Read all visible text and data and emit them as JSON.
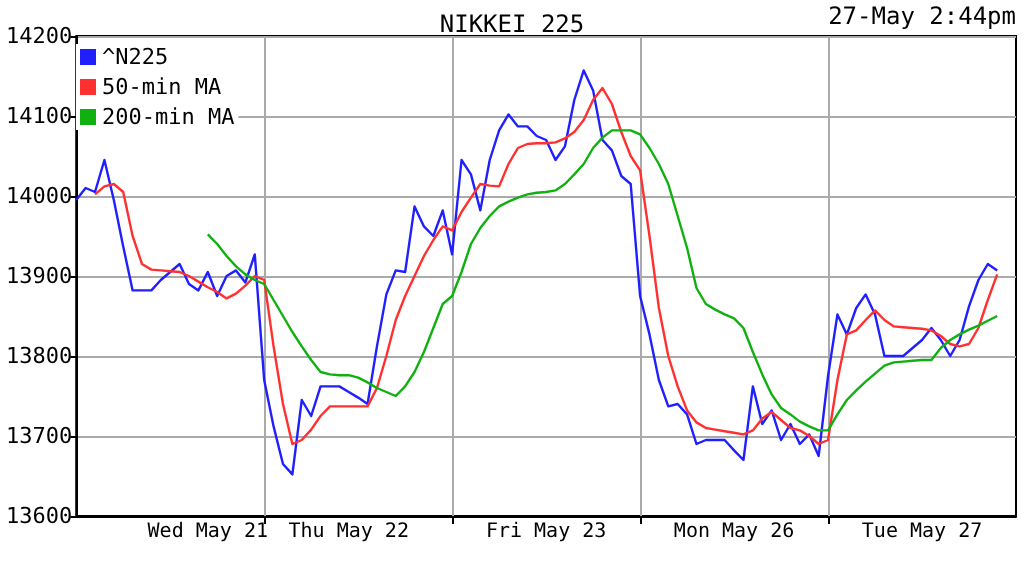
{
  "chart_data": {
    "type": "line",
    "title": "NIKKEI 225",
    "annotations": [
      "27-May 2:44pm"
    ],
    "categories": [
      null,
      null,
      null,
      null,
      null,
      null,
      null,
      null,
      null,
      null,
      null,
      null,
      null,
      null,
      "Wed May 21",
      null,
      null,
      null,
      null,
      null,
      null,
      null,
      null,
      null,
      null,
      null,
      null,
      null,
      null,
      "Thu May 22",
      null,
      null,
      null,
      null,
      null,
      null,
      null,
      null,
      null,
      null,
      null,
      null,
      null,
      null,
      null,
      null,
      null,
      null,
      null,
      null,
      "Fri May 23",
      null,
      null,
      null,
      null,
      null,
      null,
      null,
      null,
      null,
      null,
      null,
      null,
      null,
      null,
      null,
      null,
      null,
      null,
      null,
      "Mon May 26",
      null,
      null,
      null,
      null,
      null,
      null,
      null,
      null,
      null,
      null,
      null,
      null,
      null,
      null,
      null,
      null,
      null,
      null,
      null,
      "Tue May 27",
      null,
      null,
      null,
      null,
      null,
      null,
      null,
      null,
      null,
      null
    ],
    "ylim": [
      13600,
      14200
    ],
    "yticks": [
      13600,
      13700,
      13800,
      13900,
      14000,
      14100,
      14200
    ],
    "grid": true,
    "legend": "top left",
    "marker": "none",
    "line_style": "solid",
    "series": [
      {
        "name": "^N225",
        "color": "#2020ff",
        "values": [
          13995,
          14010,
          14005,
          14045,
          13995,
          13937,
          13882,
          13882,
          13882,
          13895,
          13905,
          13915,
          13890,
          13882,
          13905,
          13875,
          13900,
          13907,
          13892,
          13927,
          13770,
          13712,
          13665,
          13652,
          13745,
          13725,
          13762,
          13762,
          13762,
          13755,
          13748,
          13740,
          13812,
          13877,
          13907,
          13905,
          13987,
          13962,
          13950,
          13982,
          13927,
          14045,
          14027,
          13982,
          14045,
          14082,
          14102,
          14087,
          14087,
          14075,
          14070,
          14045,
          14062,
          14120,
          14157,
          14132,
          14070,
          14057,
          14025,
          14015,
          13875,
          13827,
          13770,
          13737,
          13740,
          13727,
          13690,
          13695,
          13695,
          13695,
          13682,
          13670,
          13762,
          13715,
          13732,
          13695,
          13715,
          13690,
          13702,
          13675,
          13775,
          13852,
          13827,
          13860,
          13877,
          13852,
          13800,
          13800,
          13800,
          13810,
          13820,
          13835,
          13820,
          13800,
          13820,
          13862,
          13895,
          13915,
          13907,
          null,
          null
        ]
      },
      {
        "name": "50-min MA",
        "color": "#ff3030",
        "values": [
          null,
          null,
          14002,
          14012,
          14015,
          14005,
          13950,
          13915,
          13908,
          13907,
          13906,
          13905,
          13900,
          13893,
          13886,
          13880,
          13872,
          13878,
          13888,
          13900,
          13895,
          13812,
          13740,
          13690,
          13695,
          13708,
          13725,
          13737,
          13737,
          13737,
          13737,
          13737,
          13760,
          13800,
          13845,
          13875,
          13900,
          13925,
          13945,
          13962,
          13957,
          13980,
          13998,
          14015,
          14013,
          14012,
          14040,
          14060,
          14065,
          14066,
          14066,
          14067,
          14072,
          14080,
          14095,
          14120,
          14135,
          14115,
          14080,
          14050,
          14032,
          13950,
          13860,
          13800,
          13762,
          13732,
          13717,
          13710,
          13708,
          13706,
          13704,
          13702,
          13707,
          13722,
          13730,
          13720,
          13710,
          13707,
          13700,
          13690,
          13695,
          13770,
          13827,
          13832,
          13845,
          13857,
          13845,
          13837,
          13836,
          13835,
          13834,
          13832,
          13825,
          13815,
          13812,
          13815,
          13835,
          13870,
          13902,
          null,
          null
        ]
      },
      {
        "name": "200-min MA",
        "color": "#10b010",
        "values": [
          null,
          null,
          null,
          null,
          null,
          null,
          null,
          null,
          null,
          null,
          null,
          null,
          null,
          null,
          13952,
          13940,
          13925,
          13912,
          13902,
          13895,
          13890,
          13870,
          13850,
          13830,
          13812,
          13795,
          13780,
          13777,
          13776,
          13776,
          13773,
          13767,
          13760,
          13755,
          13750,
          13762,
          13780,
          13805,
          13835,
          13865,
          13875,
          13905,
          13940,
          13960,
          13975,
          13987,
          13993,
          13998,
          14002,
          14004,
          14005,
          14007,
          14015,
          14027,
          14040,
          14060,
          14073,
          14082,
          14082,
          14082,
          14077,
          14060,
          14040,
          14015,
          13975,
          13935,
          13885,
          13865,
          13858,
          13852,
          13847,
          13835,
          13805,
          13777,
          13752,
          13735,
          13727,
          13718,
          13712,
          13707,
          13707,
          13727,
          13745,
          13757,
          13768,
          13778,
          13788,
          13792,
          13793,
          13794,
          13795,
          13795,
          13810,
          13820,
          13827,
          13833,
          13838,
          13844,
          13850,
          null,
          null
        ]
      }
    ]
  }
}
